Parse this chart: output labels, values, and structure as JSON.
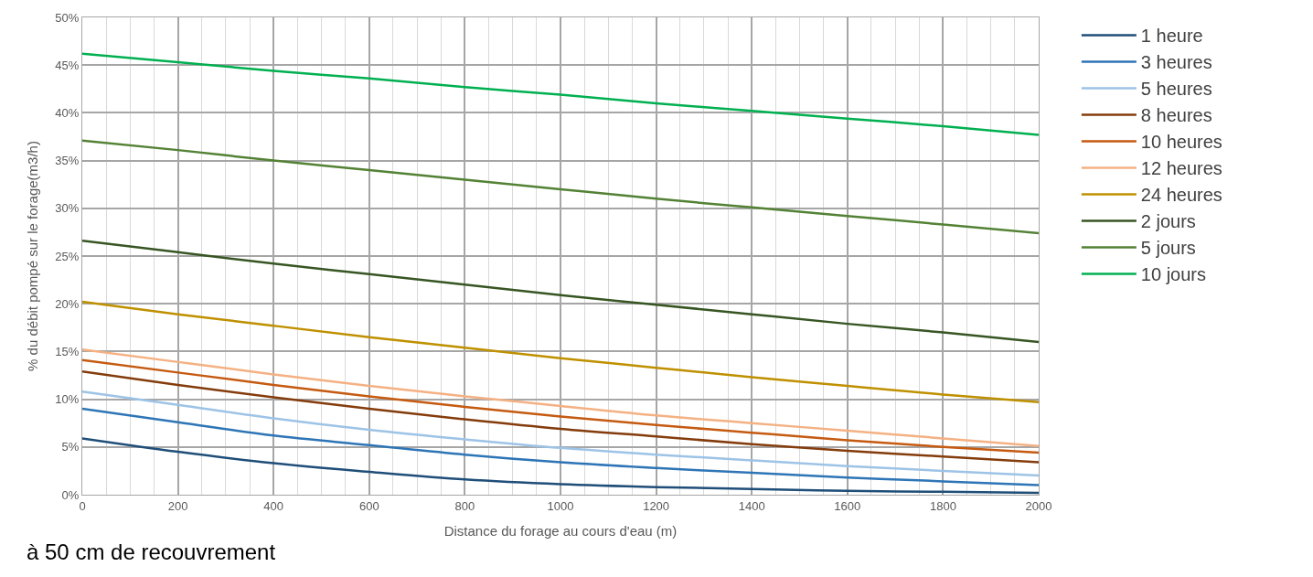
{
  "chart_data": {
    "type": "line",
    "xlabel": "Distance du forage au cours d'eau (m)",
    "ylabel": "% du débit pompé sur le forage(m3/h)",
    "annotations": [
      "à 50 cm de recouvrement"
    ],
    "x": [
      0,
      200,
      400,
      600,
      800,
      1000,
      1200,
      1400,
      1600,
      1800,
      2000
    ],
    "xlim": [
      0,
      2000
    ],
    "xticks": [
      0,
      {
        "value": 50,
        "label": null
      },
      {
        "value": 100,
        "label": null
      },
      {
        "value": 150,
        "label": null
      },
      200,
      {
        "value": 250,
        "label": null
      },
      {
        "value": 300,
        "label": null
      },
      {
        "value": 350,
        "label": null
      },
      400,
      {
        "value": 450,
        "label": null
      },
      {
        "value": 500,
        "label": null
      },
      {
        "value": 550,
        "label": null
      },
      600,
      {
        "value": 650,
        "label": null
      },
      {
        "value": 700,
        "label": null
      },
      {
        "value": 750,
        "label": null
      },
      800,
      {
        "value": 850,
        "label": null
      },
      {
        "value": 900,
        "label": null
      },
      {
        "value": 950,
        "label": null
      },
      1000,
      {
        "value": 1050,
        "label": null
      },
      {
        "value": 1100,
        "label": null
      },
      {
        "value": 1150,
        "label": null
      },
      1200,
      {
        "value": 1250,
        "label": null
      },
      {
        "value": 1300,
        "label": null
      },
      {
        "value": 1350,
        "label": null
      },
      1400,
      {
        "value": 1450,
        "label": null
      },
      {
        "value": 1500,
        "label": null
      },
      {
        "value": 1550,
        "label": null
      },
      1600,
      {
        "value": 1650,
        "label": null
      },
      {
        "value": 1700,
        "label": null
      },
      {
        "value": 1750,
        "label": null
      },
      1800,
      {
        "value": 1850,
        "label": null
      },
      {
        "value": 1900,
        "label": null
      },
      {
        "value": 1950,
        "label": null
      },
      2000
    ],
    "ylim": [
      0,
      50
    ],
    "yticks": [
      {
        "value": 0,
        "label": "0%"
      },
      {
        "value": 5,
        "label": "5%"
      },
      {
        "value": 10,
        "label": "10%"
      },
      {
        "value": 15,
        "label": "15%"
      },
      {
        "value": 20,
        "label": "20%"
      },
      {
        "value": 25,
        "label": "25%"
      },
      {
        "value": 30,
        "label": "30%"
      },
      {
        "value": 35,
        "label": "35%"
      },
      {
        "value": 40,
        "label": "40%"
      },
      {
        "value": 45,
        "label": "45%"
      },
      {
        "value": 50,
        "label": "50%"
      }
    ],
    "grid": true,
    "legend": "right",
    "marker": "none",
    "line_style": "solid",
    "series": [
      {
        "name": "1 heure",
        "color": "#1f4e79",
        "values": [
          5.9,
          4.5,
          3.3,
          2.4,
          1.6,
          1.1,
          0.8,
          0.6,
          0.4,
          0.3,
          0.2
        ]
      },
      {
        "name": "3 heures",
        "color": "#2e75b6",
        "values": [
          9.0,
          7.6,
          6.2,
          5.2,
          4.2,
          3.4,
          2.8,
          2.3,
          1.8,
          1.4,
          1.0
        ]
      },
      {
        "name": "5 heures",
        "color": "#9dc3e6",
        "values": [
          10.8,
          9.4,
          8.0,
          6.8,
          5.8,
          4.9,
          4.2,
          3.6,
          3.0,
          2.5,
          2.0
        ]
      },
      {
        "name": "8 heures",
        "color": "#843c0c",
        "values": [
          12.9,
          11.5,
          10.2,
          9.0,
          7.9,
          6.9,
          6.1,
          5.3,
          4.6,
          4.0,
          3.4
        ]
      },
      {
        "name": "10 heures",
        "color": "#c55a11",
        "values": [
          14.1,
          12.8,
          11.5,
          10.3,
          9.2,
          8.2,
          7.3,
          6.5,
          5.7,
          5.0,
          4.4
        ]
      },
      {
        "name": "12 heures",
        "color": "#f4b183",
        "values": [
          15.2,
          13.9,
          12.6,
          11.4,
          10.3,
          9.3,
          8.3,
          7.5,
          6.7,
          5.9,
          5.1
        ]
      },
      {
        "name": "24 heures",
        "color": "#bf9000",
        "values": [
          20.2,
          18.9,
          17.7,
          16.5,
          15.4,
          14.3,
          13.3,
          12.3,
          11.4,
          10.5,
          9.7
        ]
      },
      {
        "name": "2 jours",
        "color": "#375623",
        "values": [
          26.6,
          25.4,
          24.2,
          23.1,
          22.0,
          20.9,
          19.9,
          18.9,
          17.9,
          17.0,
          16.0
        ]
      },
      {
        "name": "5 jours",
        "color": "#548235",
        "values": [
          37.1,
          36.1,
          35.0,
          34.0,
          33.0,
          32.0,
          31.0,
          30.1,
          29.2,
          28.3,
          27.4
        ]
      },
      {
        "name": "10 jours",
        "color": "#00b050",
        "values": [
          46.2,
          45.3,
          44.4,
          43.6,
          42.7,
          41.9,
          41.0,
          40.2,
          39.4,
          38.6,
          37.7
        ]
      }
    ]
  }
}
